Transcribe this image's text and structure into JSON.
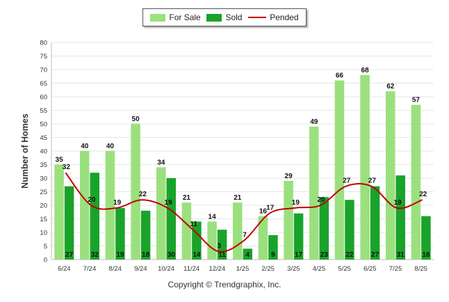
{
  "chart_data": {
    "type": "bar",
    "ylabel": "Number of Homes",
    "ylim": [
      0,
      80
    ],
    "ytick_step": 5,
    "grid": true,
    "legend_position": "top-center",
    "categories": [
      "6/24",
      "7/24",
      "8/24",
      "9/24",
      "10/24",
      "11/24",
      "12/24",
      "1/25",
      "2/25",
      "3/25",
      "4/25",
      "5/25",
      "6/25",
      "7/25",
      "8/25"
    ],
    "series": [
      {
        "name": "For Sale",
        "kind": "bar",
        "color": "#9be07e",
        "values": [
          35,
          40,
          40,
          50,
          34,
          21,
          14,
          21,
          16,
          29,
          49,
          66,
          68,
          62,
          57
        ]
      },
      {
        "name": "Sold",
        "kind": "bar",
        "color": "#1aa32a",
        "values": [
          27,
          32,
          19,
          18,
          30,
          14,
          11,
          4,
          9,
          17,
          23,
          22,
          27,
          31,
          16
        ]
      },
      {
        "name": "Pended",
        "kind": "line",
        "color": "#c00000",
        "values": [
          32,
          20,
          19,
          22,
          19,
          11,
          3,
          7,
          17,
          19,
          20,
          27,
          27,
          19,
          22
        ]
      }
    ]
  },
  "legend": {
    "for_sale": "For Sale",
    "sold": "Sold",
    "pended": "Pended"
  },
  "footer": {
    "copyright": "Copyright © Trendgraphix, Inc."
  }
}
